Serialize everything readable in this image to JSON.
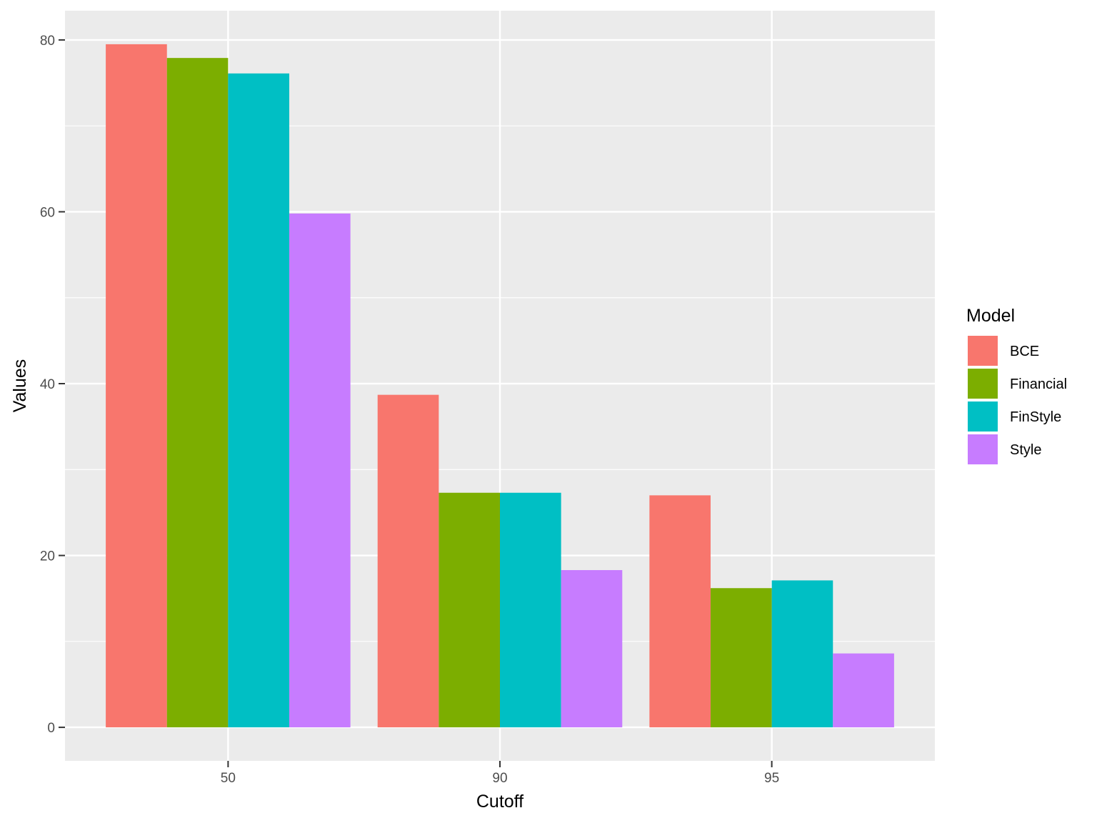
{
  "chart_data": {
    "type": "bar",
    "xlabel": "Cutoff",
    "ylabel": "Values",
    "categories": [
      "50",
      "90",
      "95"
    ],
    "ylim": [
      -3.9,
      83.4
    ],
    "yticks": [
      0,
      20,
      40,
      60,
      80
    ],
    "grid": true,
    "legend": {
      "title": "Model",
      "position": "right"
    },
    "series": [
      {
        "name": "BCE",
        "color": "#F8766D",
        "values": [
          79.5,
          38.7,
          27.0
        ]
      },
      {
        "name": "Financial",
        "color": "#7CAE00",
        "values": [
          77.9,
          27.3,
          16.2
        ]
      },
      {
        "name": "FinStyle",
        "color": "#00BFC4",
        "values": [
          76.1,
          27.3,
          17.1
        ]
      },
      {
        "name": "Style",
        "color": "#C77CFF",
        "values": [
          59.8,
          18.3,
          8.6
        ]
      }
    ],
    "colors": {
      "panel": "#EBEBEB",
      "grid": "#FFFFFF",
      "tick": "#333333"
    }
  }
}
